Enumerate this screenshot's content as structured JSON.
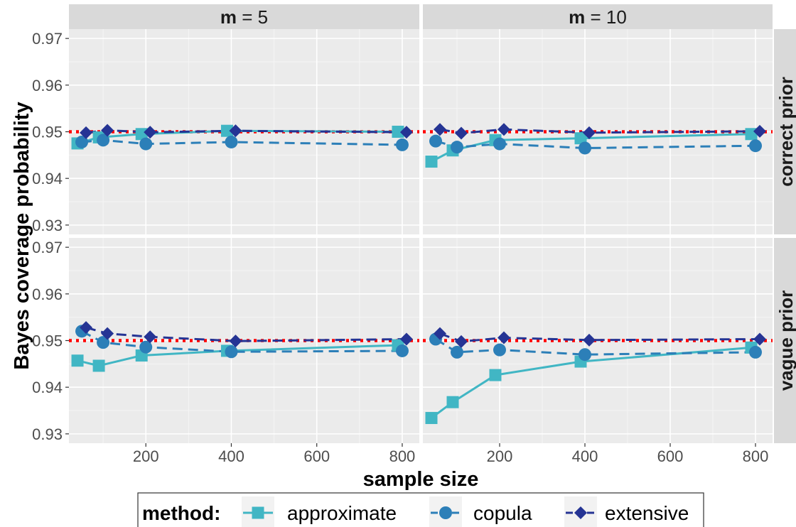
{
  "chart_data": {
    "type": "line",
    "ylabel": "Bayes coverage probability",
    "xlabel": "sample size",
    "x_ticks": [
      200,
      400,
      600,
      800
    ],
    "y_ticks": [
      0.93,
      0.94,
      0.95,
      0.96,
      0.97
    ],
    "xlim": [
      20,
      840
    ],
    "ylim": [
      0.928,
      0.972
    ],
    "reference_line": {
      "y": 0.95,
      "color": "#ff0000",
      "style": "dotted"
    },
    "col_facets": [
      {
        "key": "m5",
        "label_bold": "m",
        "label_rest": " = 5"
      },
      {
        "key": "m10",
        "label_bold": "m",
        "label_rest": " = 10"
      }
    ],
    "row_facets": [
      {
        "key": "correct",
        "label": "correct prior"
      },
      {
        "key": "vague",
        "label": "vague prior"
      }
    ],
    "legend": {
      "title": "method:",
      "position": "bottom",
      "entries": [
        {
          "name": "approximate",
          "color": "#41b6c4",
          "shape": "square",
          "linestyle": "solid"
        },
        {
          "name": "copula",
          "color": "#2c7fb8",
          "shape": "circle",
          "linestyle": "dashed"
        },
        {
          "name": "extensive",
          "color": "#253494",
          "shape": "diamond",
          "linestyle": "dashed"
        }
      ]
    },
    "panels": [
      {
        "col": "m5",
        "row": "correct",
        "series": [
          {
            "name": "approximate",
            "x": [
              50,
              100,
              200,
              400,
              800
            ],
            "y": [
              0.9475,
              0.9488,
              0.9495,
              0.9502,
              0.95
            ]
          },
          {
            "name": "copula",
            "x": [
              50,
              100,
              200,
              400,
              800
            ],
            "y": [
              0.9478,
              0.9482,
              0.9474,
              0.9478,
              0.9472
            ]
          },
          {
            "name": "extensive",
            "x": [
              50,
              100,
              200,
              400,
              800
            ],
            "y": [
              0.9498,
              0.9503,
              0.9499,
              0.9502,
              0.9499
            ]
          }
        ]
      },
      {
        "col": "m10",
        "row": "correct",
        "series": [
          {
            "name": "approximate",
            "x": [
              50,
              100,
              200,
              400,
              800
            ],
            "y": [
              0.9436,
              0.946,
              0.9482,
              0.9486,
              0.9495
            ]
          },
          {
            "name": "copula",
            "x": [
              50,
              100,
              200,
              400,
              800
            ],
            "y": [
              0.948,
              0.9467,
              0.9474,
              0.9465,
              0.947
            ]
          },
          {
            "name": "extensive",
            "x": [
              50,
              100,
              200,
              400,
              800
            ],
            "y": [
              0.9505,
              0.9497,
              0.9505,
              0.9498,
              0.9501
            ]
          }
        ]
      },
      {
        "col": "m5",
        "row": "vague",
        "series": [
          {
            "name": "approximate",
            "x": [
              50,
              100,
              200,
              400,
              800
            ],
            "y": [
              0.9457,
              0.9446,
              0.9468,
              0.9478,
              0.949
            ]
          },
          {
            "name": "copula",
            "x": [
              50,
              100,
              200,
              400,
              800
            ],
            "y": [
              0.952,
              0.9496,
              0.9486,
              0.9476,
              0.9478
            ]
          },
          {
            "name": "extensive",
            "x": [
              50,
              100,
              200,
              400,
              800
            ],
            "y": [
              0.9528,
              0.9515,
              0.9508,
              0.9499,
              0.9503
            ]
          }
        ]
      },
      {
        "col": "m10",
        "row": "vague",
        "series": [
          {
            "name": "approximate",
            "x": [
              50,
              100,
              200,
              400,
              800
            ],
            "y": [
              0.9334,
              0.9368,
              0.9426,
              0.9455,
              0.9485
            ]
          },
          {
            "name": "copula",
            "x": [
              50,
              100,
              200,
              400,
              800
            ],
            "y": [
              0.9503,
              0.9475,
              0.948,
              0.947,
              0.9475
            ]
          },
          {
            "name": "extensive",
            "x": [
              50,
              100,
              200,
              400,
              800
            ],
            "y": [
              0.9515,
              0.9498,
              0.9506,
              0.9501,
              0.9503
            ]
          }
        ]
      }
    ]
  }
}
